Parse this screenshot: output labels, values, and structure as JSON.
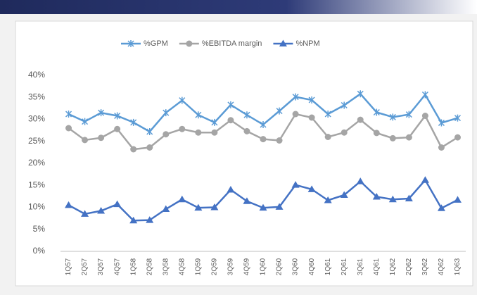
{
  "chart_data": {
    "type": "line",
    "categories": [
      "1Q57",
      "2Q57",
      "3Q57",
      "4Q57",
      "1Q58",
      "2Q58",
      "3Q58",
      "4Q58",
      "1Q59",
      "2Q59",
      "3Q59",
      "4Q59",
      "1Q60",
      "2Q60",
      "3Q60",
      "4Q60",
      "1Q61",
      "2Q61",
      "3Q61",
      "4Q61",
      "1Q62",
      "2Q62",
      "3Q62",
      "4Q62",
      "1Q63"
    ],
    "series": [
      {
        "name": "%GPM",
        "color": "#5b9bd5",
        "marker": "star",
        "values": [
          31.2,
          29.5,
          31.5,
          30.8,
          29.3,
          27.2,
          31.5,
          34.3,
          31.0,
          29.3,
          33.3,
          31.0,
          28.8,
          31.9,
          35.1,
          34.4,
          31.2,
          33.2,
          35.8,
          31.6,
          30.5,
          31.1,
          35.6,
          29.2,
          30.3
        ]
      },
      {
        "name": "%EBITDA margin",
        "color": "#a5a5a5",
        "marker": "circle",
        "values": [
          28.0,
          25.3,
          25.8,
          27.8,
          23.2,
          23.6,
          26.6,
          27.8,
          27.0,
          27.0,
          29.8,
          27.3,
          25.5,
          25.2,
          31.2,
          30.4,
          26.0,
          27.0,
          29.9,
          26.9,
          25.7,
          25.9,
          30.8,
          23.6,
          25.9
        ]
      },
      {
        "name": "%NPM",
        "color": "#4472c4",
        "marker": "triangle",
        "values": [
          10.5,
          8.5,
          9.2,
          10.7,
          7.0,
          7.1,
          9.6,
          11.8,
          9.9,
          10.0,
          14.0,
          11.4,
          9.9,
          10.1,
          15.1,
          14.1,
          11.6,
          12.8,
          15.9,
          12.4,
          11.8,
          12.0,
          16.2,
          9.8,
          11.7
        ]
      }
    ],
    "ylim": [
      0,
      40
    ],
    "yticks": [
      {
        "value": 0,
        "label": "0%"
      },
      {
        "value": 5,
        "label": "5%"
      },
      {
        "value": 10,
        "label": "10%"
      },
      {
        "value": 15,
        "label": "15%"
      },
      {
        "value": 20,
        "label": "20%"
      },
      {
        "value": 25,
        "label": "25%"
      },
      {
        "value": 30,
        "label": "30%"
      },
      {
        "value": 35,
        "label": "35%"
      },
      {
        "value": 40,
        "label": "40%"
      }
    ],
    "grid": false,
    "legend": "top"
  }
}
